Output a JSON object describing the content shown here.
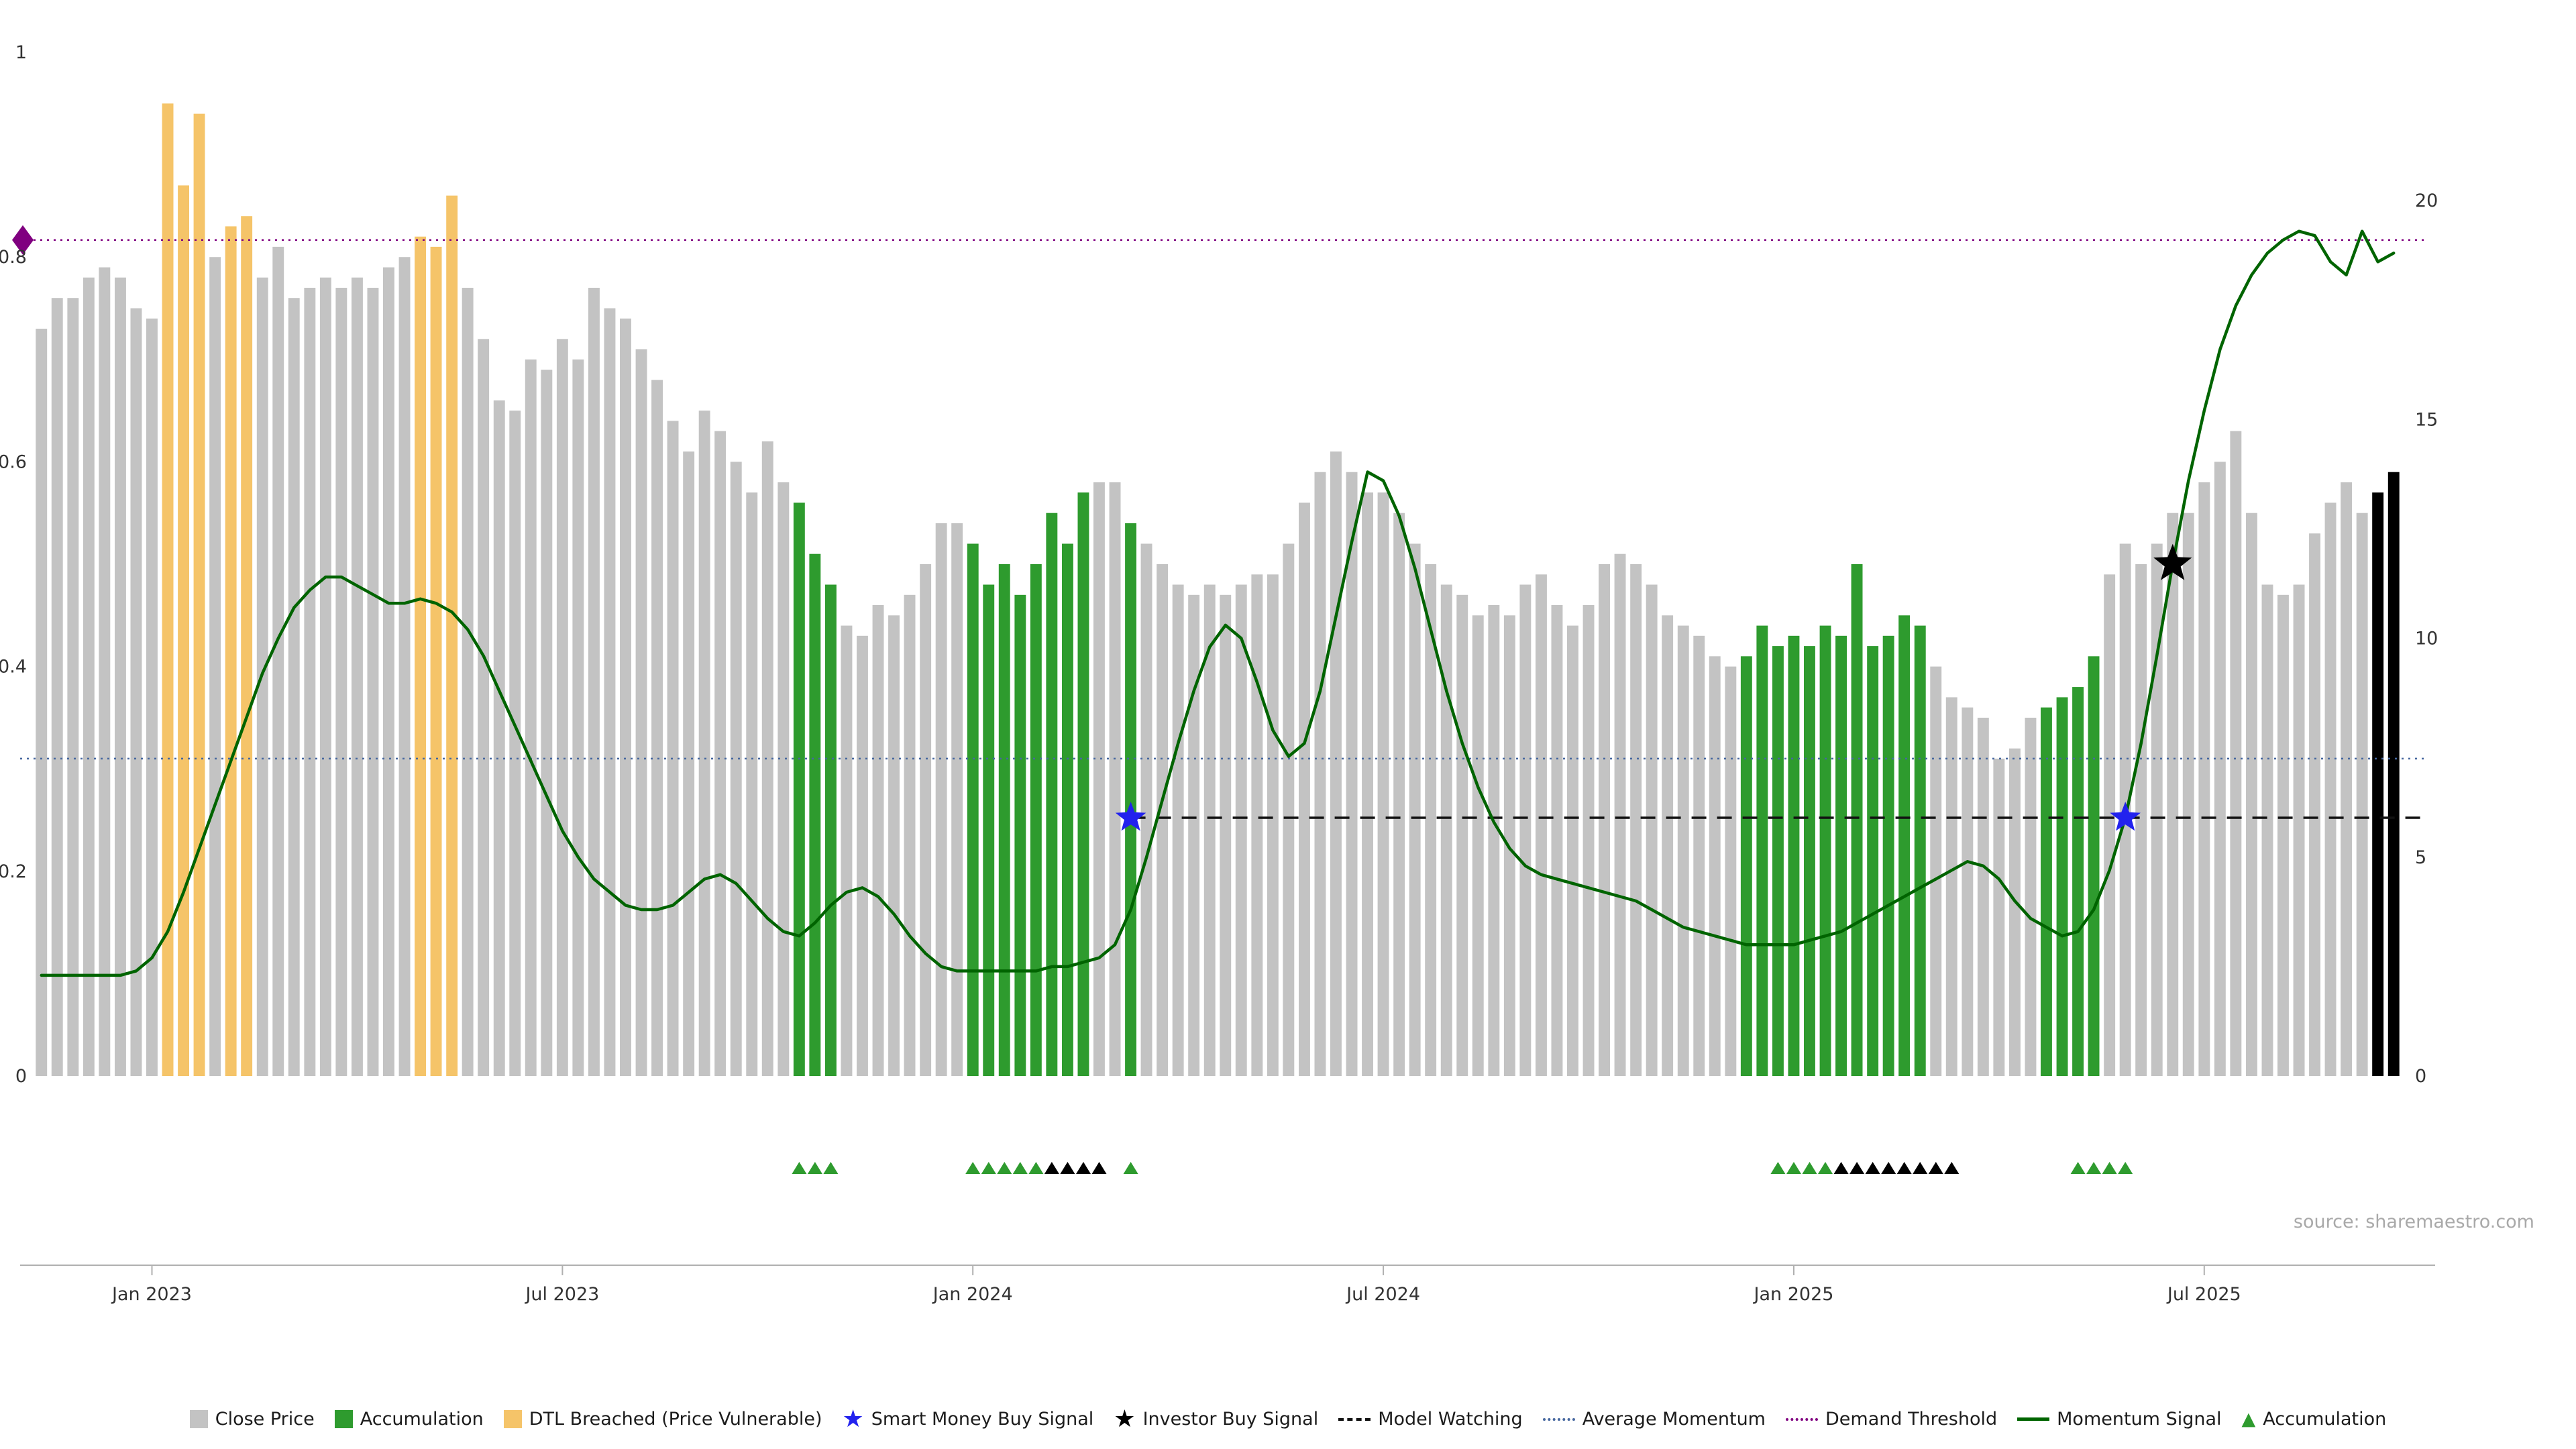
{
  "chart": {
    "source": "source: sharemaestro.com"
  },
  "chart_data": {
    "type": "bar+line",
    "title": "",
    "x_axis": {
      "tick_indices": [
        7,
        33,
        59,
        85,
        111,
        137
      ],
      "tick_labels": [
        "Jan 2023",
        "Jul 2023",
        "Jan 2024",
        "Jul 2024",
        "Jan 2025",
        "Jul 2025"
      ]
    },
    "left_axis": {
      "range": [
        0,
        1
      ],
      "ticks": [
        0,
        0.2,
        0.4,
        0.6,
        0.8,
        1
      ],
      "tick_labels": [
        "0",
        "0.2",
        "0.4",
        "0.6",
        "0.8",
        "1"
      ]
    },
    "right_axis": {
      "range": [
        0,
        20
      ],
      "ticks": [
        0,
        5,
        10,
        15,
        20
      ],
      "tick_labels": [
        "0",
        "5",
        "10",
        "15",
        "20"
      ]
    },
    "bars": {
      "name": "Close Price (normalized, weekly)",
      "axis": "left",
      "values": [
        0.73,
        0.76,
        0.76,
        0.78,
        0.79,
        0.78,
        0.75,
        0.74,
        0.95,
        0.87,
        0.94,
        0.8,
        0.83,
        0.84,
        0.78,
        0.81,
        0.76,
        0.77,
        0.78,
        0.77,
        0.78,
        0.77,
        0.79,
        0.8,
        0.82,
        0.81,
        0.86,
        0.77,
        0.72,
        0.66,
        0.65,
        0.7,
        0.69,
        0.72,
        0.7,
        0.77,
        0.75,
        0.74,
        0.71,
        0.68,
        0.64,
        0.61,
        0.65,
        0.63,
        0.6,
        0.57,
        0.62,
        0.58,
        0.56,
        0.51,
        0.48,
        0.44,
        0.43,
        0.46,
        0.45,
        0.47,
        0.5,
        0.54,
        0.54,
        0.52,
        0.48,
        0.5,
        0.47,
        0.5,
        0.55,
        0.52,
        0.57,
        0.58,
        0.58,
        0.54,
        0.52,
        0.5,
        0.48,
        0.47,
        0.48,
        0.47,
        0.48,
        0.49,
        0.49,
        0.52,
        0.56,
        0.59,
        0.61,
        0.59,
        0.57,
        0.57,
        0.55,
        0.52,
        0.5,
        0.48,
        0.47,
        0.45,
        0.46,
        0.45,
        0.48,
        0.49,
        0.46,
        0.44,
        0.46,
        0.5,
        0.51,
        0.5,
        0.48,
        0.45,
        0.44,
        0.43,
        0.41,
        0.4,
        0.41,
        0.44,
        0.42,
        0.43,
        0.42,
        0.44,
        0.43,
        0.5,
        0.42,
        0.43,
        0.45,
        0.44,
        0.4,
        0.37,
        0.36,
        0.35,
        0.31,
        0.32,
        0.35,
        0.36,
        0.37,
        0.38,
        0.41,
        0.49,
        0.52,
        0.5,
        0.52,
        0.55,
        0.55,
        0.58,
        0.6,
        0.63,
        0.55,
        0.48,
        0.47,
        0.48,
        0.53,
        0.56,
        0.58,
        0.55,
        0.57,
        0.59
      ],
      "colors": "ggggggggOOOgOOggggggggggOOOgggggggggggggggggggggGGGggggggggGGGGGGGGggGggggggggggggggggggggggggggggggggggggggGGGGGGGGGGGGgggggggGGGGggggggggggggggggg",
      "color_map": {
        "g": "#c3c3c3",
        "G": "#2e9b2e",
        "O": "#f5c469"
      },
      "color_meaning": {
        "g": "Close Price",
        "G": "Accumulation",
        "O": "DTL Breached (Price Vulnerable)"
      }
    },
    "momentum_signal": {
      "name": "Momentum Signal",
      "axis": "right",
      "color": "#006400",
      "values": [
        2.3,
        2.3,
        2.3,
        2.3,
        2.3,
        2.3,
        2.4,
        2.7,
        3.3,
        4.2,
        5.2,
        6.2,
        7.2,
        8.2,
        9.2,
        10.0,
        10.7,
        11.1,
        11.4,
        11.4,
        11.2,
        11.0,
        10.8,
        10.8,
        10.9,
        10.8,
        10.6,
        10.2,
        9.6,
        8.8,
        8.0,
        7.2,
        6.4,
        5.6,
        5.0,
        4.5,
        4.2,
        3.9,
        3.8,
        3.8,
        3.9,
        4.2,
        4.5,
        4.6,
        4.4,
        4.0,
        3.6,
        3.3,
        3.2,
        3.5,
        3.9,
        4.2,
        4.3,
        4.1,
        3.7,
        3.2,
        2.8,
        2.5,
        2.4,
        2.4,
        2.4,
        2.4,
        2.4,
        2.4,
        2.5,
        2.5,
        2.6,
        2.7,
        3.0,
        3.8,
        5.0,
        6.3,
        7.6,
        8.8,
        9.8,
        10.3,
        10.0,
        9.0,
        7.9,
        7.3,
        7.6,
        8.8,
        10.5,
        12.2,
        13.8,
        13.6,
        12.8,
        11.6,
        10.2,
        8.8,
        7.6,
        6.6,
        5.8,
        5.2,
        4.8,
        4.6,
        4.5,
        4.4,
        4.3,
        4.2,
        4.1,
        4.0,
        3.8,
        3.6,
        3.4,
        3.3,
        3.2,
        3.1,
        3.0,
        3.0,
        3.0,
        3.0,
        3.1,
        3.2,
        3.3,
        3.5,
        3.7,
        3.9,
        4.1,
        4.3,
        4.5,
        4.7,
        4.9,
        4.8,
        4.5,
        4.0,
        3.6,
        3.4,
        3.2,
        3.3,
        3.8,
        4.7,
        5.9,
        7.6,
        9.6,
        11.7,
        13.6,
        15.2,
        16.6,
        17.6,
        18.3,
        18.8,
        19.1,
        19.3,
        19.2,
        18.6,
        18.3,
        19.3,
        18.6,
        18.8
      ]
    },
    "reference_lines": {
      "model_watching": {
        "label": "Model Watching",
        "axis": "right",
        "value": 5.9,
        "style": "dashed",
        "color": "#111111",
        "start_index": 69
      },
      "average_momentum": {
        "label": "Average Momentum",
        "axis": "right",
        "value": 7.25,
        "style": "dotted",
        "color": "#46679f"
      },
      "demand_threshold": {
        "label": "Demand Threshold",
        "axis": "right",
        "value": 19.1,
        "style": "dotted",
        "color": "#800080"
      }
    },
    "markers": {
      "demand_diamond": {
        "shape": "diamond",
        "color": "#800080",
        "axis": "right",
        "value": 19.1
      },
      "smart_money_buy_signals": [
        {
          "index": 69,
          "value": 5.9
        },
        {
          "index": 132,
          "value": 5.9
        }
      ],
      "investor_buy_signals": [
        {
          "index": 135,
          "value": 11.7
        }
      ],
      "star_colors": {
        "smart_money": "#2222ee",
        "investor": "#000000"
      }
    },
    "accumulation_triangles": {
      "green": [
        48,
        49,
        50,
        59,
        60,
        61,
        62,
        63,
        69,
        110,
        111,
        112,
        113,
        129,
        130,
        131,
        132
      ],
      "black": [
        64,
        65,
        66,
        67,
        114,
        115,
        116,
        117,
        118,
        119,
        120,
        121
      ],
      "green_color": "#2e9b2e",
      "black_color": "#000000"
    }
  },
  "legend": {
    "items": [
      {
        "type": "square",
        "color": "#c3c3c3",
        "label": "Close Price"
      },
      {
        "type": "square",
        "color": "#2e9b2e",
        "label": "Accumulation"
      },
      {
        "type": "square",
        "color": "#f5c469",
        "label": "DTL Breached (Price Vulnerable)"
      },
      {
        "type": "star",
        "color": "#2222ee",
        "label": "Smart Money Buy Signal"
      },
      {
        "type": "star",
        "color": "#000000",
        "label": "Investor Buy Signal"
      },
      {
        "type": "dashed-line",
        "color": "#111111",
        "label": "Model Watching"
      },
      {
        "type": "dotted-line",
        "color": "#46679f",
        "label": "Average Momentum"
      },
      {
        "type": "dotted-line",
        "color": "#800080",
        "label": "Demand Threshold"
      },
      {
        "type": "solid-line",
        "color": "#006400",
        "label": "Momentum Signal"
      },
      {
        "type": "triangle",
        "color": "#2e9b2e",
        "label": "Accumulation"
      }
    ]
  }
}
